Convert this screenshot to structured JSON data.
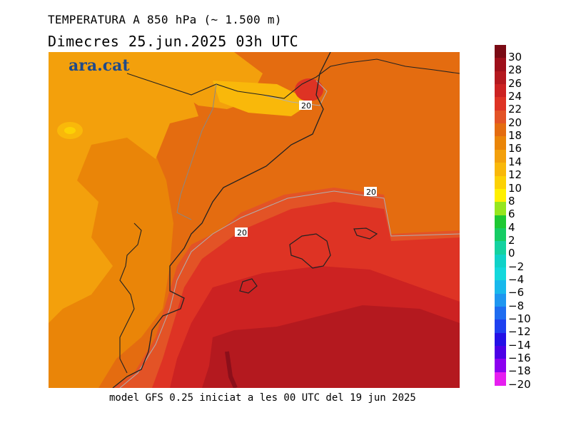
{
  "title": "TEMPERATURA A 850 hPa (~ 1.500 m)",
  "subtitle": "Dimecres   25.jun.2025 03h UTC",
  "footer": "model GFS 0.25 iniciat a les 00 UTC del 19 jun 2025",
  "logo": "ara.cat",
  "contour_labels": [
    "20",
    "20",
    "20"
  ],
  "legend": [
    {
      "label": "30",
      "color": "#7a0a14"
    },
    {
      "label": "28",
      "color": "#9e0f1a"
    },
    {
      "label": "26",
      "color": "#b4191f"
    },
    {
      "label": "24",
      "color": "#cc2222"
    },
    {
      "label": "22",
      "color": "#de3324"
    },
    {
      "label": "20",
      "color": "#e35326"
    },
    {
      "label": "18",
      "color": "#e46c10"
    },
    {
      "label": "16",
      "color": "#ea8508"
    },
    {
      "label": "14",
      "color": "#f3a00c"
    },
    {
      "label": "12",
      "color": "#f9b80a"
    },
    {
      "label": "10",
      "color": "#fcd105"
    },
    {
      "label": "8",
      "color": "#fff000"
    },
    {
      "label": "6",
      "color": "#96e61e"
    },
    {
      "label": "4",
      "color": "#1ec832"
    },
    {
      "label": "2",
      "color": "#16cc64"
    },
    {
      "label": "0",
      "color": "#14d2a0"
    },
    {
      "label": "−2",
      "color": "#10d2c8"
    },
    {
      "label": "−4",
      "color": "#14d8dc"
    },
    {
      "label": "−6",
      "color": "#18b8ec"
    },
    {
      "label": "−8",
      "color": "#1e96f0"
    },
    {
      "label": "−10",
      "color": "#1e6cf0"
    },
    {
      "label": "−12",
      "color": "#1e40f0"
    },
    {
      "label": "−14",
      "color": "#2410e6"
    },
    {
      "label": "−16",
      "color": "#4c00e6"
    },
    {
      "label": "−18",
      "color": "#8c00f0"
    },
    {
      "label": "−20",
      "color": "#e61ef0"
    }
  ]
}
